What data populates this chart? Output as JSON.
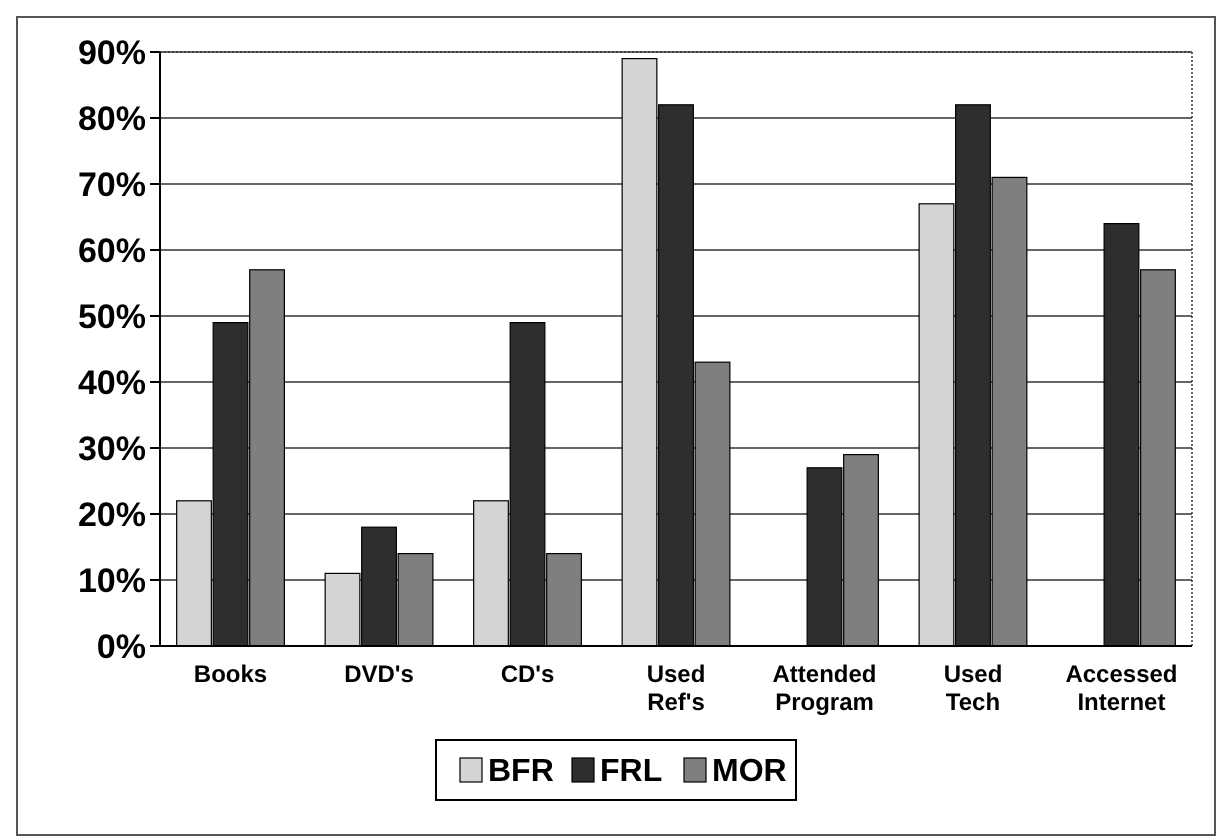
{
  "chart_data": {
    "type": "bar",
    "categories": [
      "Books",
      "DVD's",
      "CD's",
      "Used Ref's",
      "Attended Program",
      "Used Tech",
      "Accessed Internet"
    ],
    "series": [
      {
        "name": "BFR",
        "color": "#d4d4d4",
        "values": [
          22,
          11,
          22,
          89,
          0,
          67,
          0
        ]
      },
      {
        "name": "FRL",
        "color": "#2e2e2e",
        "values": [
          49,
          18,
          49,
          82,
          27,
          82,
          64
        ]
      },
      {
        "name": "MOR",
        "color": "#7f7f7f",
        "values": [
          57,
          14,
          14,
          43,
          29,
          71,
          57
        ]
      }
    ],
    "ylim": [
      0,
      90
    ],
    "yticks": [
      {
        "value": 0,
        "label": "0%"
      },
      {
        "value": 10,
        "label": "10%"
      },
      {
        "value": 20,
        "label": "20%"
      },
      {
        "value": 30,
        "label": "30%"
      },
      {
        "value": 40,
        "label": "40%"
      },
      {
        "value": 50,
        "label": "50%"
      },
      {
        "value": 60,
        "label": "60%"
      },
      {
        "value": 70,
        "label": "70%"
      },
      {
        "value": 80,
        "label": "80%"
      },
      {
        "value": 90,
        "label": "90%"
      }
    ],
    "grid": "y",
    "legend": "bottom"
  }
}
